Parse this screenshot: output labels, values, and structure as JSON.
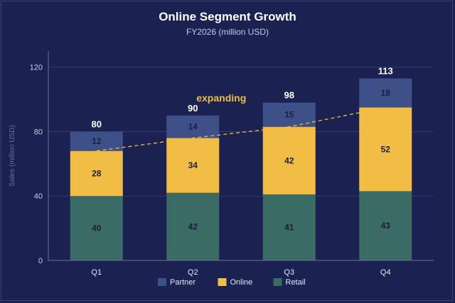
{
  "title": "Online Segment Growth",
  "subtitle": "FY2026 (million USD)",
  "chart_data": {
    "type": "bar",
    "stacked": true,
    "categories": [
      "Q1",
      "Q2",
      "Q3",
      "Q4"
    ],
    "series": [
      {
        "name": "Retail",
        "color": "#3a6b65",
        "values": [
          40,
          42,
          41,
          43
        ]
      },
      {
        "name": "Online",
        "color": "#f1bd45",
        "values": [
          28,
          34,
          42,
          52
        ]
      },
      {
        "name": "Partner",
        "color": "#3e5088",
        "values": [
          12,
          14,
          15,
          18
        ]
      }
    ],
    "totals": [
      80,
      90,
      98,
      113
    ],
    "ylabel": "Sales (million USD)",
    "ylim": [
      0,
      130
    ],
    "yticks": [
      0,
      40,
      80,
      120
    ],
    "grid": true,
    "legend_position": "bottom",
    "legend_order": [
      "Partner",
      "Online",
      "Retail"
    ],
    "annotation": {
      "text": "expanding",
      "color": "#f1bd45",
      "style": "dashed trend line across Online segment tops"
    }
  }
}
